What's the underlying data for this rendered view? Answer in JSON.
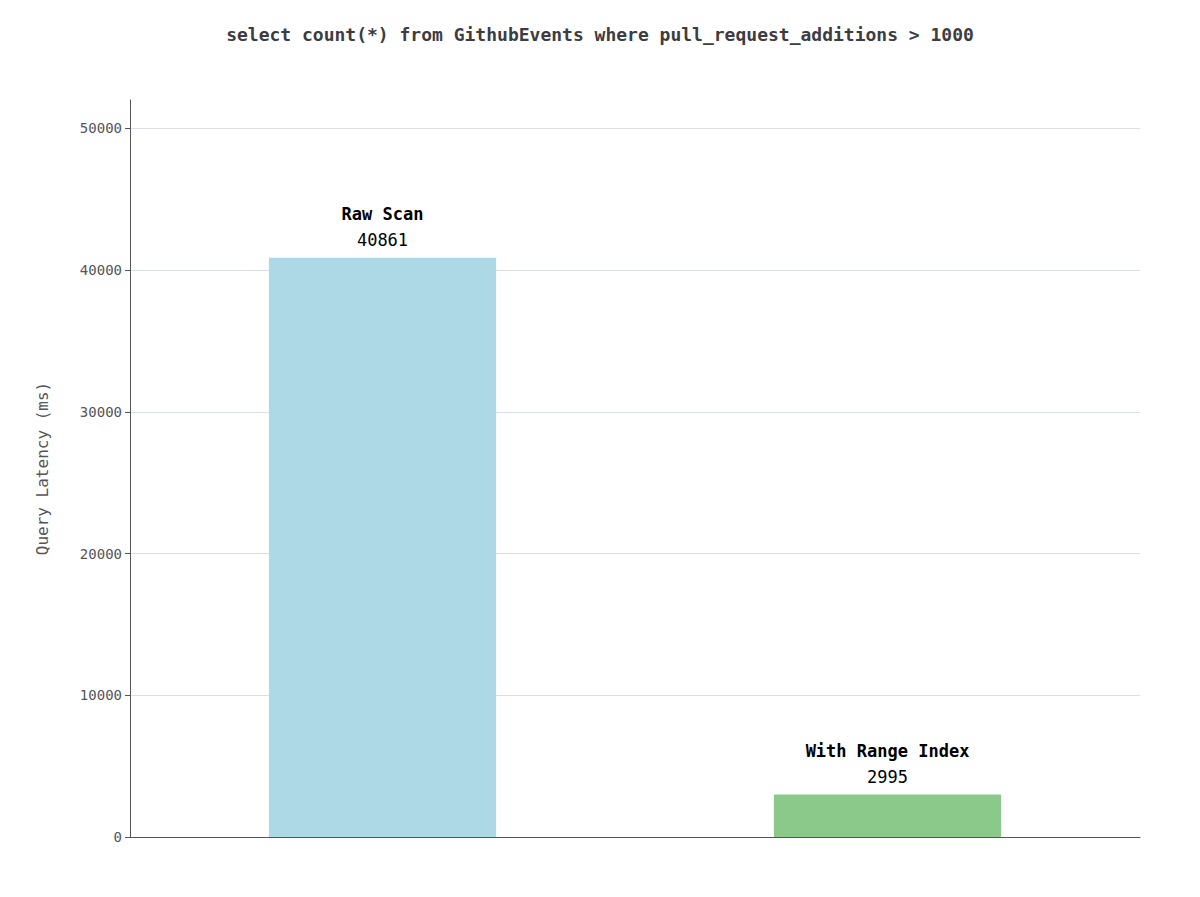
{
  "chart_data": {
    "type": "bar",
    "title": "select count(*) from GithubEvents where pull_request_additions > 1000",
    "ylabel": "Query Latency (ms)",
    "categories": [
      "Raw Scan",
      "With Range Index"
    ],
    "values": [
      40861,
      2995
    ],
    "colors": [
      "#add8e6",
      "#8bc98b"
    ],
    "ylim": [
      0,
      52000
    ],
    "yticks": [
      0,
      10000,
      20000,
      30000,
      40000,
      50000
    ],
    "grid": true,
    "data_labels": true,
    "tick_labels": "y"
  }
}
